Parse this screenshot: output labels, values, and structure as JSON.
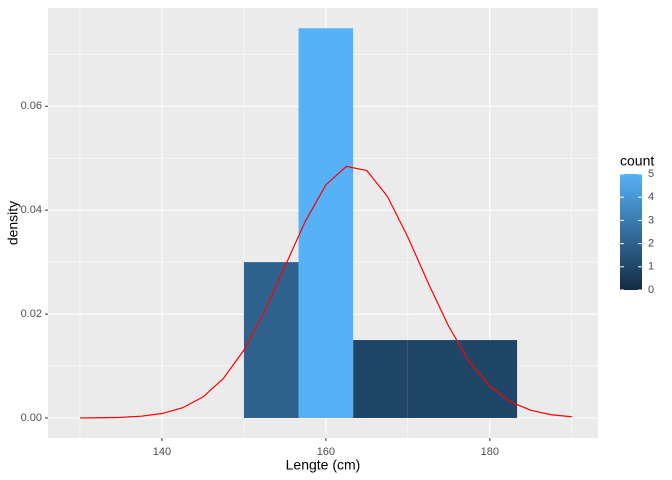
{
  "chart_data": {
    "type": "histogram",
    "x_label": "Lengte (cm)",
    "y_label": "density",
    "bins": [
      150,
      156.67,
      163.33,
      170,
      176.67,
      183.33
    ],
    "values": [
      0.03,
      0.075,
      0.015,
      0.015,
      0.015
    ],
    "counts": [
      2,
      5,
      1,
      1,
      1
    ],
    "xlim": [
      126.1,
      193.2
    ],
    "ylim": [
      -0.00385,
      0.0789
    ],
    "xticks": [
      140,
      160,
      180
    ],
    "yticks": [
      {
        "value": 0,
        "label": "0.00"
      },
      {
        "value": 0.02,
        "label": "0.02"
      },
      {
        "value": 0.04,
        "label": "0.04"
      },
      {
        "value": 0.06,
        "label": "0.06"
      }
    ],
    "xminor": [
      130,
      150,
      170,
      190
    ],
    "yminor": [
      0.01,
      0.03,
      0.05,
      0.07
    ],
    "grid": true,
    "density_curve": {
      "color": "#ff0000",
      "x": [
        130,
        132.5,
        135,
        137.5,
        140,
        142.5,
        145,
        147.5,
        150,
        152.5,
        155,
        157.5,
        160,
        162.5,
        165,
        167.5,
        170,
        172.5,
        175,
        177.5,
        180,
        182.5,
        185,
        187.5,
        190
      ],
      "values": [
        1e-05,
        4.2e-05,
        0.000126,
        0.000345,
        0.000859,
        0.00195,
        0.00403,
        0.0076,
        0.01306,
        0.02044,
        0.02915,
        0.03788,
        0.04487,
        0.04842,
        0.04761,
        0.04267,
        0.03484,
        0.02593,
        0.01758,
        0.01086,
        0.00612,
        0.00314,
        0.00147,
        0.000625,
        0.000243
      ]
    },
    "legend": {
      "title": "count",
      "lim": [
        0,
        5
      ],
      "ticks": [
        0,
        1,
        2,
        3,
        4,
        5
      ],
      "low_color": "#132b43",
      "high_color": "#56b1f7"
    }
  }
}
